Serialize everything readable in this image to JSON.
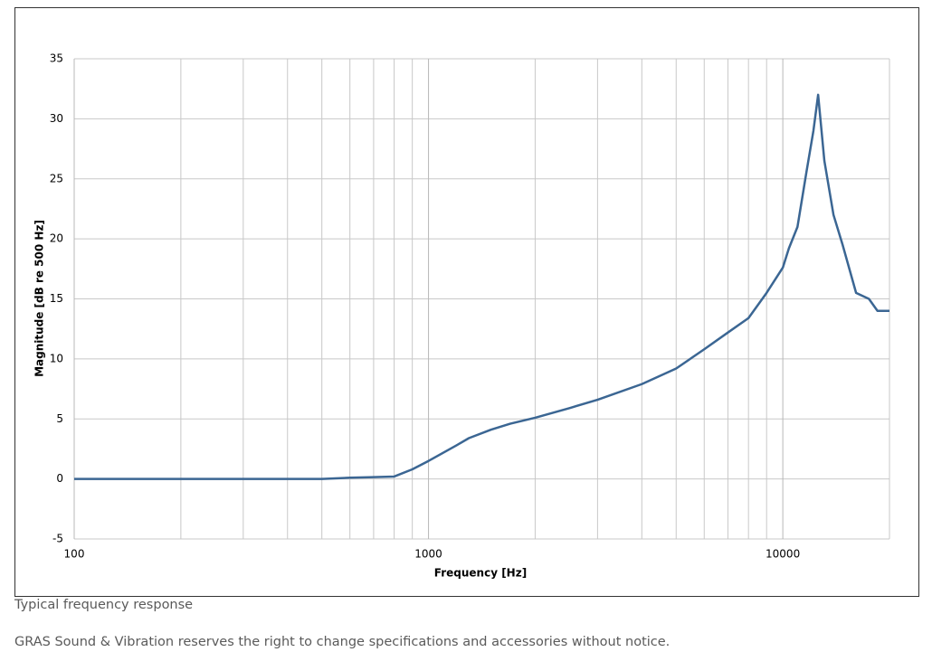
{
  "chart_data": {
    "type": "line",
    "x_scale": "log",
    "grid": true,
    "xlabel": "Frequency [Hz]",
    "ylabel": "Magnitude [dB re 500 Hz]",
    "xlim": [
      100,
      20000
    ],
    "xticks": [
      100,
      1000,
      10000
    ],
    "xminor_ticks": [
      200,
      300,
      400,
      500,
      600,
      700,
      800,
      900,
      2000,
      3000,
      4000,
      5000,
      6000,
      7000,
      8000,
      9000
    ],
    "ylim": [
      -5,
      35
    ],
    "yticks": [
      -5,
      0,
      5,
      10,
      15,
      20,
      25,
      30,
      35
    ],
    "series": [
      {
        "color": "#3b6693",
        "x": [
          100,
          200,
          300,
          500,
          600,
          700,
          800,
          900,
          1000,
          1200,
          1300,
          1500,
          1700,
          2000,
          2500,
          3000,
          4000,
          5000,
          6000,
          7000,
          8000,
          9000,
          10000,
          10400,
          11000,
          11650,
          12200,
          12580,
          13100,
          13900,
          14750,
          16100,
          17500,
          18500,
          19500,
          20000
        ],
        "values": [
          0,
          0,
          0,
          0,
          0.1,
          0.15,
          0.2,
          0.8,
          1.5,
          2.8,
          3.4,
          4.1,
          4.6,
          5.1,
          5.9,
          6.6,
          7.9,
          9.2,
          10.8,
          12.2,
          13.4,
          15.5,
          17.6,
          19.2,
          21,
          25.5,
          29,
          32,
          26.5,
          22,
          19.5,
          15.5,
          15,
          14,
          14,
          14
        ]
      }
    ]
  },
  "caption": "Typical frequency response",
  "notice": "GRAS Sound & Vibration reserves the right to change specifications and accessories without notice."
}
